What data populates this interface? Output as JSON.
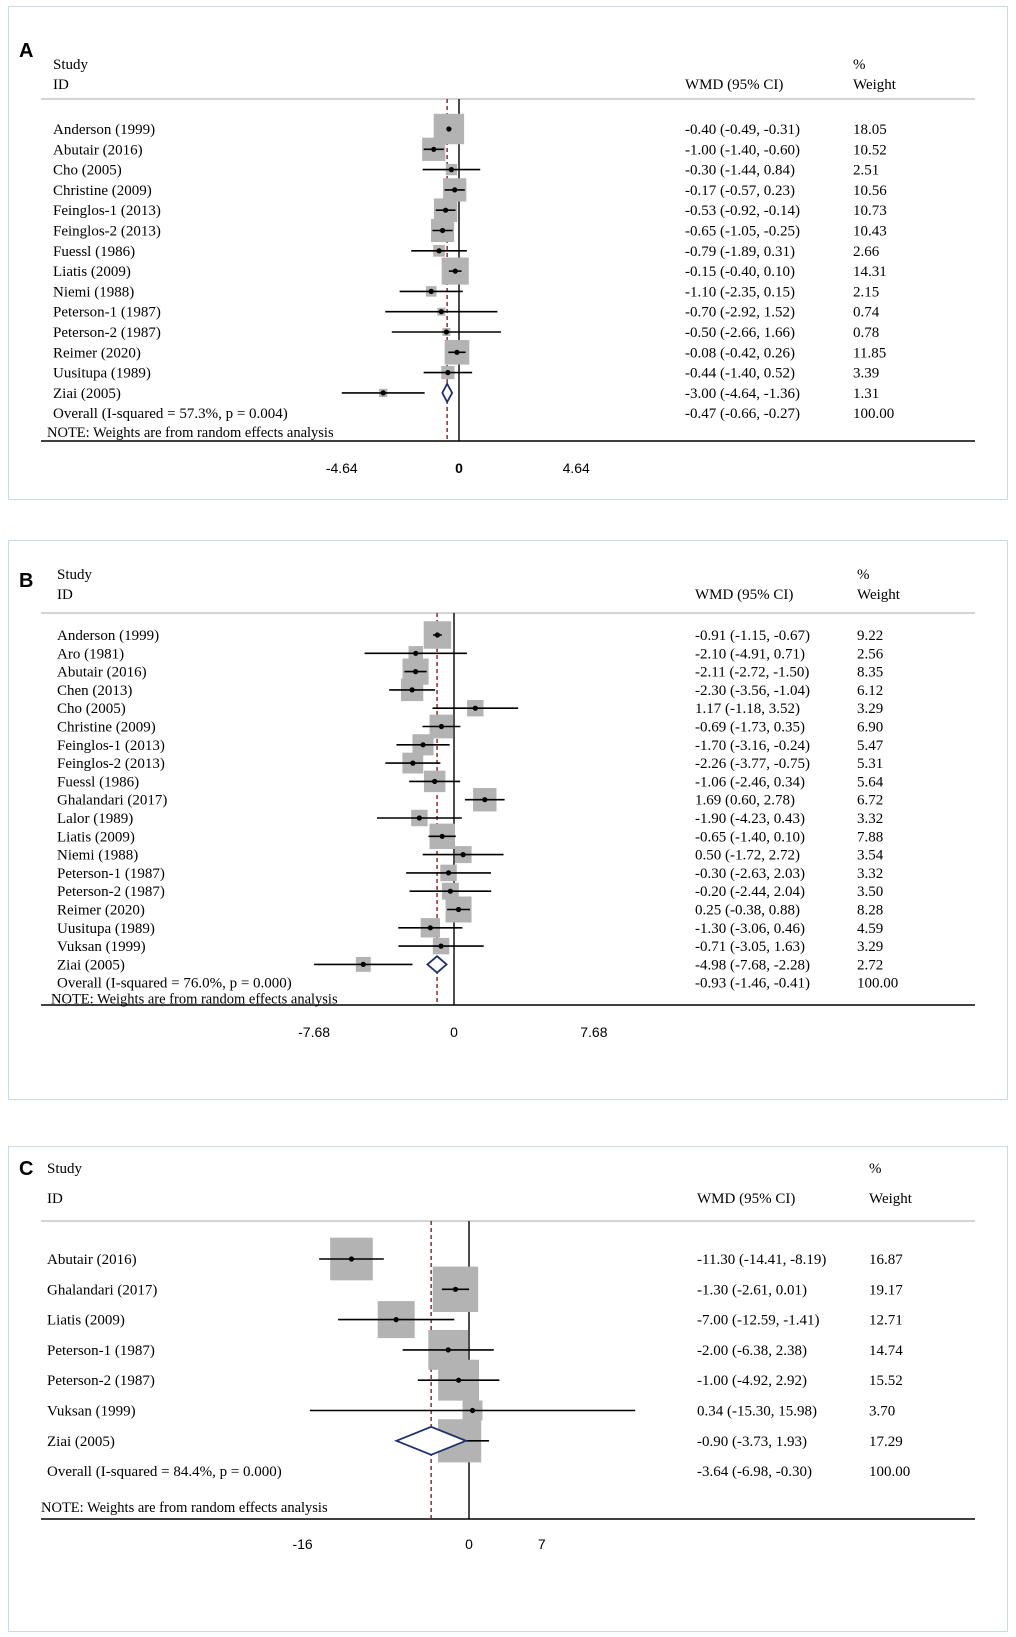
{
  "chart_data": [
    {
      "type": "forest",
      "panel_label": "A",
      "headers": {
        "study": "Study",
        "id": "ID",
        "effect": "WMD (95% CI)",
        "pct": "%",
        "weight": "Weight"
      },
      "axis": {
        "min": -9.5,
        "max": 9.5,
        "ticks": [
          "-4.64",
          "0",
          "4.64"
        ],
        "tick_values": [
          -4.64,
          0,
          4.64
        ]
      },
      "overall_estimate": -0.47,
      "studies": [
        {
          "label": "Anderson (1999)",
          "ci_text": "-0.40 (-0.49, -0.31)",
          "weight_text": "18.05",
          "est": -0.4,
          "lo": -0.49,
          "hi": -0.31,
          "w": 18.05
        },
        {
          "label": "Abutair (2016)",
          "ci_text": "-1.00 (-1.40, -0.60)",
          "weight_text": "10.52",
          "est": -1.0,
          "lo": -1.4,
          "hi": -0.6,
          "w": 10.52
        },
        {
          "label": "Cho (2005)",
          "ci_text": "-0.30 (-1.44, 0.84)",
          "weight_text": "2.51",
          "est": -0.3,
          "lo": -1.44,
          "hi": 0.84,
          "w": 2.51
        },
        {
          "label": "Christine (2009)",
          "ci_text": "-0.17 (-0.57, 0.23)",
          "weight_text": "10.56",
          "est": -0.17,
          "lo": -0.57,
          "hi": 0.23,
          "w": 10.56
        },
        {
          "label": "Feinglos-1 (2013)",
          "ci_text": "-0.53 (-0.92, -0.14)",
          "weight_text": "10.73",
          "est": -0.53,
          "lo": -0.92,
          "hi": -0.14,
          "w": 10.73
        },
        {
          "label": "Feinglos-2 (2013)",
          "ci_text": "-0.65 (-1.05, -0.25)",
          "weight_text": "10.43",
          "est": -0.65,
          "lo": -1.05,
          "hi": -0.25,
          "w": 10.43
        },
        {
          "label": "Fuessl (1986)",
          "ci_text": "-0.79 (-1.89, 0.31)",
          "weight_text": "2.66",
          "est": -0.79,
          "lo": -1.89,
          "hi": 0.31,
          "w": 2.66
        },
        {
          "label": "Liatis (2009)",
          "ci_text": "-0.15 (-0.40, 0.10)",
          "weight_text": "14.31",
          "est": -0.15,
          "lo": -0.4,
          "hi": 0.1,
          "w": 14.31
        },
        {
          "label": "Niemi (1988)",
          "ci_text": "-1.10 (-2.35, 0.15)",
          "weight_text": "2.15",
          "est": -1.1,
          "lo": -2.35,
          "hi": 0.15,
          "w": 2.15
        },
        {
          "label": "Peterson-1 (1987)",
          "ci_text": "-0.70 (-2.92, 1.52)",
          "weight_text": "0.74",
          "est": -0.7,
          "lo": -2.92,
          "hi": 1.52,
          "w": 0.74
        },
        {
          "label": "Peterson-2 (1987)",
          "ci_text": "-0.50 (-2.66, 1.66)",
          "weight_text": "0.78",
          "est": -0.5,
          "lo": -2.66,
          "hi": 1.66,
          "w": 0.78
        },
        {
          "label": "Reimer (2020)",
          "ci_text": "-0.08 (-0.42, 0.26)",
          "weight_text": "11.85",
          "est": -0.08,
          "lo": -0.42,
          "hi": 0.26,
          "w": 11.85
        },
        {
          "label": "Uusitupa (1989)",
          "ci_text": "-0.44 (-1.40, 0.52)",
          "weight_text": "3.39",
          "est": -0.44,
          "lo": -1.4,
          "hi": 0.52,
          "w": 3.39
        },
        {
          "label": "Ziai (2005)",
          "ci_text": "-3.00 (-4.64, -1.36)",
          "weight_text": "1.31",
          "est": -3.0,
          "lo": -4.64,
          "hi": -1.36,
          "w": 1.31
        }
      ],
      "overall": {
        "label": "Overall (I-squared = 57.3%, p = 0.004)",
        "ci_text": "-0.47 (-0.66, -0.27)",
        "weight_text": "100.00",
        "est": -0.47,
        "lo": -0.66,
        "hi": -0.27
      },
      "note": "NOTE: Weights are from random effects analysis"
    },
    {
      "type": "forest",
      "panel_label": "B",
      "headers": {
        "study": "Study",
        "id": "ID",
        "effect": "WMD (95% CI)",
        "pct": "%",
        "weight": "Weight"
      },
      "axis": {
        "min": -14.0,
        "max": 14.0,
        "ticks": [
          "-7.68",
          "0",
          "7.68"
        ],
        "tick_values": [
          -7.68,
          0,
          7.68
        ]
      },
      "overall_estimate": -0.93,
      "studies": [
        {
          "label": "Anderson (1999)",
          "ci_text": "-0.91 (-1.15, -0.67)",
          "weight_text": "9.22",
          "est": -0.91,
          "lo": -1.15,
          "hi": -0.67,
          "w": 9.22
        },
        {
          "label": "Aro (1981)",
          "ci_text": "-2.10 (-4.91, 0.71)",
          "weight_text": "2.56",
          "est": -2.1,
          "lo": -4.91,
          "hi": 0.71,
          "w": 2.56
        },
        {
          "label": "Abutair (2016)",
          "ci_text": "-2.11 (-2.72, -1.50)",
          "weight_text": "8.35",
          "est": -2.11,
          "lo": -2.72,
          "hi": -1.5,
          "w": 8.35
        },
        {
          "label": "Chen (2013)",
          "ci_text": "-2.30 (-3.56, -1.04)",
          "weight_text": "6.12",
          "est": -2.3,
          "lo": -3.56,
          "hi": -1.04,
          "w": 6.12
        },
        {
          "label": "Cho (2005)",
          "ci_text": "1.17 (-1.18, 3.52)",
          "weight_text": "3.29",
          "est": 1.17,
          "lo": -1.18,
          "hi": 3.52,
          "w": 3.29
        },
        {
          "label": "Christine (2009)",
          "ci_text": "-0.69 (-1.73, 0.35)",
          "weight_text": "6.90",
          "est": -0.69,
          "lo": -1.73,
          "hi": 0.35,
          "w": 6.9
        },
        {
          "label": "Feinglos-1 (2013)",
          "ci_text": "-1.70 (-3.16, -0.24)",
          "weight_text": "5.47",
          "est": -1.7,
          "lo": -3.16,
          "hi": -0.24,
          "w": 5.47
        },
        {
          "label": "Feinglos-2 (2013)",
          "ci_text": "-2.26 (-3.77, -0.75)",
          "weight_text": "5.31",
          "est": -2.26,
          "lo": -3.77,
          "hi": -0.75,
          "w": 5.31
        },
        {
          "label": "Fuessl (1986)",
          "ci_text": "-1.06 (-2.46, 0.34)",
          "weight_text": "5.64",
          "est": -1.06,
          "lo": -2.46,
          "hi": 0.34,
          "w": 5.64
        },
        {
          "label": "Ghalandari (2017)",
          "ci_text": "1.69 (0.60, 2.78)",
          "weight_text": "6.72",
          "est": 1.69,
          "lo": 0.6,
          "hi": 2.78,
          "w": 6.72
        },
        {
          "label": "Lalor (1989)",
          "ci_text": "-1.90 (-4.23, 0.43)",
          "weight_text": "3.32",
          "est": -1.9,
          "lo": -4.23,
          "hi": 0.43,
          "w": 3.32
        },
        {
          "label": "Liatis (2009)",
          "ci_text": "-0.65 (-1.40, 0.10)",
          "weight_text": "7.88",
          "est": -0.65,
          "lo": -1.4,
          "hi": 0.1,
          "w": 7.88
        },
        {
          "label": "Niemi (1988)",
          "ci_text": "0.50 (-1.72, 2.72)",
          "weight_text": "3.54",
          "est": 0.5,
          "lo": -1.72,
          "hi": 2.72,
          "w": 3.54
        },
        {
          "label": "Peterson-1 (1987)",
          "ci_text": "-0.30 (-2.63, 2.03)",
          "weight_text": "3.32",
          "est": -0.3,
          "lo": -2.63,
          "hi": 2.03,
          "w": 3.32
        },
        {
          "label": "Peterson-2 (1987)",
          "ci_text": "-0.20 (-2.44, 2.04)",
          "weight_text": "3.50",
          "est": -0.2,
          "lo": -2.44,
          "hi": 2.04,
          "w": 3.5
        },
        {
          "label": "Reimer (2020)",
          "ci_text": "0.25 (-0.38, 0.88)",
          "weight_text": "8.28",
          "est": 0.25,
          "lo": -0.38,
          "hi": 0.88,
          "w": 8.28
        },
        {
          "label": "Uusitupa (1989)",
          "ci_text": "-1.30 (-3.06, 0.46)",
          "weight_text": "4.59",
          "est": -1.3,
          "lo": -3.06,
          "hi": 0.46,
          "w": 4.59
        },
        {
          "label": "Vuksan (1999)",
          "ci_text": "-0.71 (-3.05, 1.63)",
          "weight_text": "3.29",
          "est": -0.71,
          "lo": -3.05,
          "hi": 1.63,
          "w": 3.29
        },
        {
          "label": "Ziai (2005)",
          "ci_text": "-4.98 (-7.68, -2.28)",
          "weight_text": "2.72",
          "est": -4.98,
          "lo": -7.68,
          "hi": -2.28,
          "w": 2.72
        }
      ],
      "overall": {
        "label": "Overall (I-squared = 76.0%, p = 0.000)",
        "ci_text": "-0.93 (-1.46, -0.41)",
        "weight_text": "100.00",
        "est": -0.93,
        "lo": -1.46,
        "hi": -0.41
      },
      "note": "NOTE: Weights are from random effects analysis"
    },
    {
      "type": "forest",
      "panel_label": "C",
      "headers": {
        "study": "Study",
        "id": "ID",
        "effect": "WMD (95% CI)",
        "pct": "%",
        "weight": "Weight"
      },
      "axis": {
        "min": -25.0,
        "max": 25.0,
        "ticks": [
          "-16",
          "0",
          "7"
        ],
        "tick_values": [
          -16,
          0,
          7
        ]
      },
      "overall_estimate": -3.64,
      "studies": [
        {
          "label": "Abutair (2016)",
          "ci_text": "-11.30 (-14.41, -8.19)",
          "weight_text": "16.87",
          "est": -11.3,
          "lo": -14.41,
          "hi": -8.19,
          "w": 16.87
        },
        {
          "label": "Ghalandari (2017)",
          "ci_text": "-1.30 (-2.61, 0.01)",
          "weight_text": "19.17",
          "est": -1.3,
          "lo": -2.61,
          "hi": 0.01,
          "w": 19.17
        },
        {
          "label": "Liatis (2009)",
          "ci_text": "-7.00 (-12.59, -1.41)",
          "weight_text": "12.71",
          "est": -7.0,
          "lo": -12.59,
          "hi": -1.41,
          "w": 12.71
        },
        {
          "label": "Peterson-1 (1987)",
          "ci_text": "-2.00 (-6.38, 2.38)",
          "weight_text": "14.74",
          "est": -2.0,
          "lo": -6.38,
          "hi": 2.38,
          "w": 14.74
        },
        {
          "label": "Peterson-2 (1987)",
          "ci_text": "-1.00 (-4.92, 2.92)",
          "weight_text": "15.52",
          "est": -1.0,
          "lo": -4.92,
          "hi": 2.92,
          "w": 15.52
        },
        {
          "label": "Vuksan (1999)",
          "ci_text": "0.34 (-15.30, 15.98)",
          "weight_text": "3.70",
          "est": 0.34,
          "lo": -15.3,
          "hi": 15.98,
          "w": 3.7
        },
        {
          "label": "Ziai (2005)",
          "ci_text": "-0.90 (-3.73, 1.93)",
          "weight_text": "17.29",
          "est": -0.9,
          "lo": -3.73,
          "hi": 1.93,
          "w": 17.29
        }
      ],
      "overall": {
        "label": "Overall (I-squared = 84.4%, p = 0.000)",
        "ci_text": "-3.64 (-6.98, -0.30)",
        "weight_text": "100.00",
        "est": -3.64,
        "lo": -6.98,
        "hi": -0.3
      },
      "note": "NOTE: Weights are from random effects analysis"
    }
  ],
  "colors": {
    "box": "#b3b3b3",
    "line": "#000000",
    "diamond": "#1f2f6b",
    "ref_line": "#8b1a1a",
    "border": "#c9dbe6"
  }
}
